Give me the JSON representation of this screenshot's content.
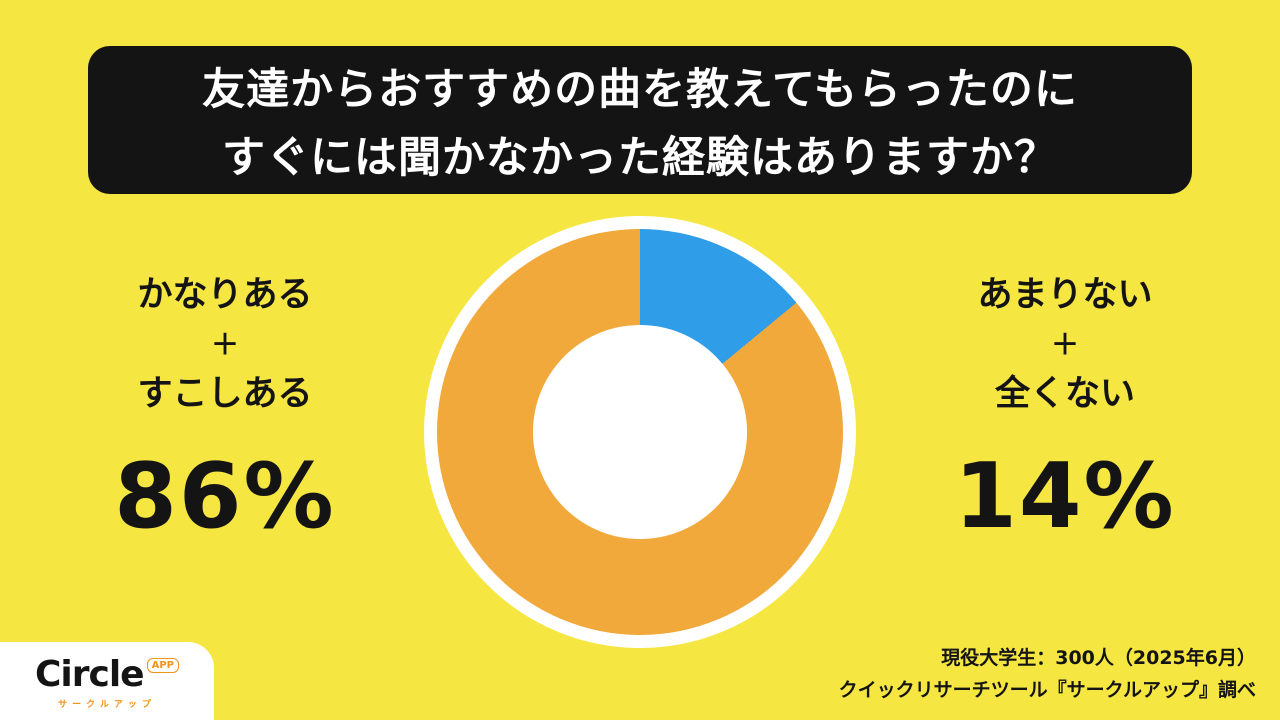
{
  "colors": {
    "background": "#F5E642",
    "orange": "#F2A93B",
    "blue": "#2F9DE8",
    "banner_black": "#141414",
    "white": "#FFFFFF",
    "logo_orange": "#F0941E"
  },
  "header": {
    "title_line1": "友達からおすすめの曲を教えてもらったのに",
    "title_line2": "すぐには聞かなかった経験はありますか？"
  },
  "chart_data": {
    "type": "pie",
    "title": "友達からおすすめの曲を教えてもらったのにすぐには聞かなかった経験はありますか？",
    "donut": true,
    "start_angle_deg": 0,
    "segments": [
      {
        "label": "かなりある＋すこしある",
        "value": 86,
        "color": "#F2A93B"
      },
      {
        "label": "あまりない＋全くない",
        "value": 14,
        "color": "#2F9DE8"
      }
    ]
  },
  "left_stat": {
    "line1": "かなりある",
    "plus": "＋",
    "line2": "すこしある",
    "value": "86%"
  },
  "right_stat": {
    "line1": "あまりない",
    "plus": "＋",
    "line2": "全くない",
    "value": "14%"
  },
  "logo": {
    "brand": "Circle",
    "badge": "APP",
    "subtitle": "サークルアップ"
  },
  "footer": {
    "line1": "現役大学生：300人（2025年6月）",
    "line2": "クイックリサーチツール『サークルアップ』調べ"
  }
}
